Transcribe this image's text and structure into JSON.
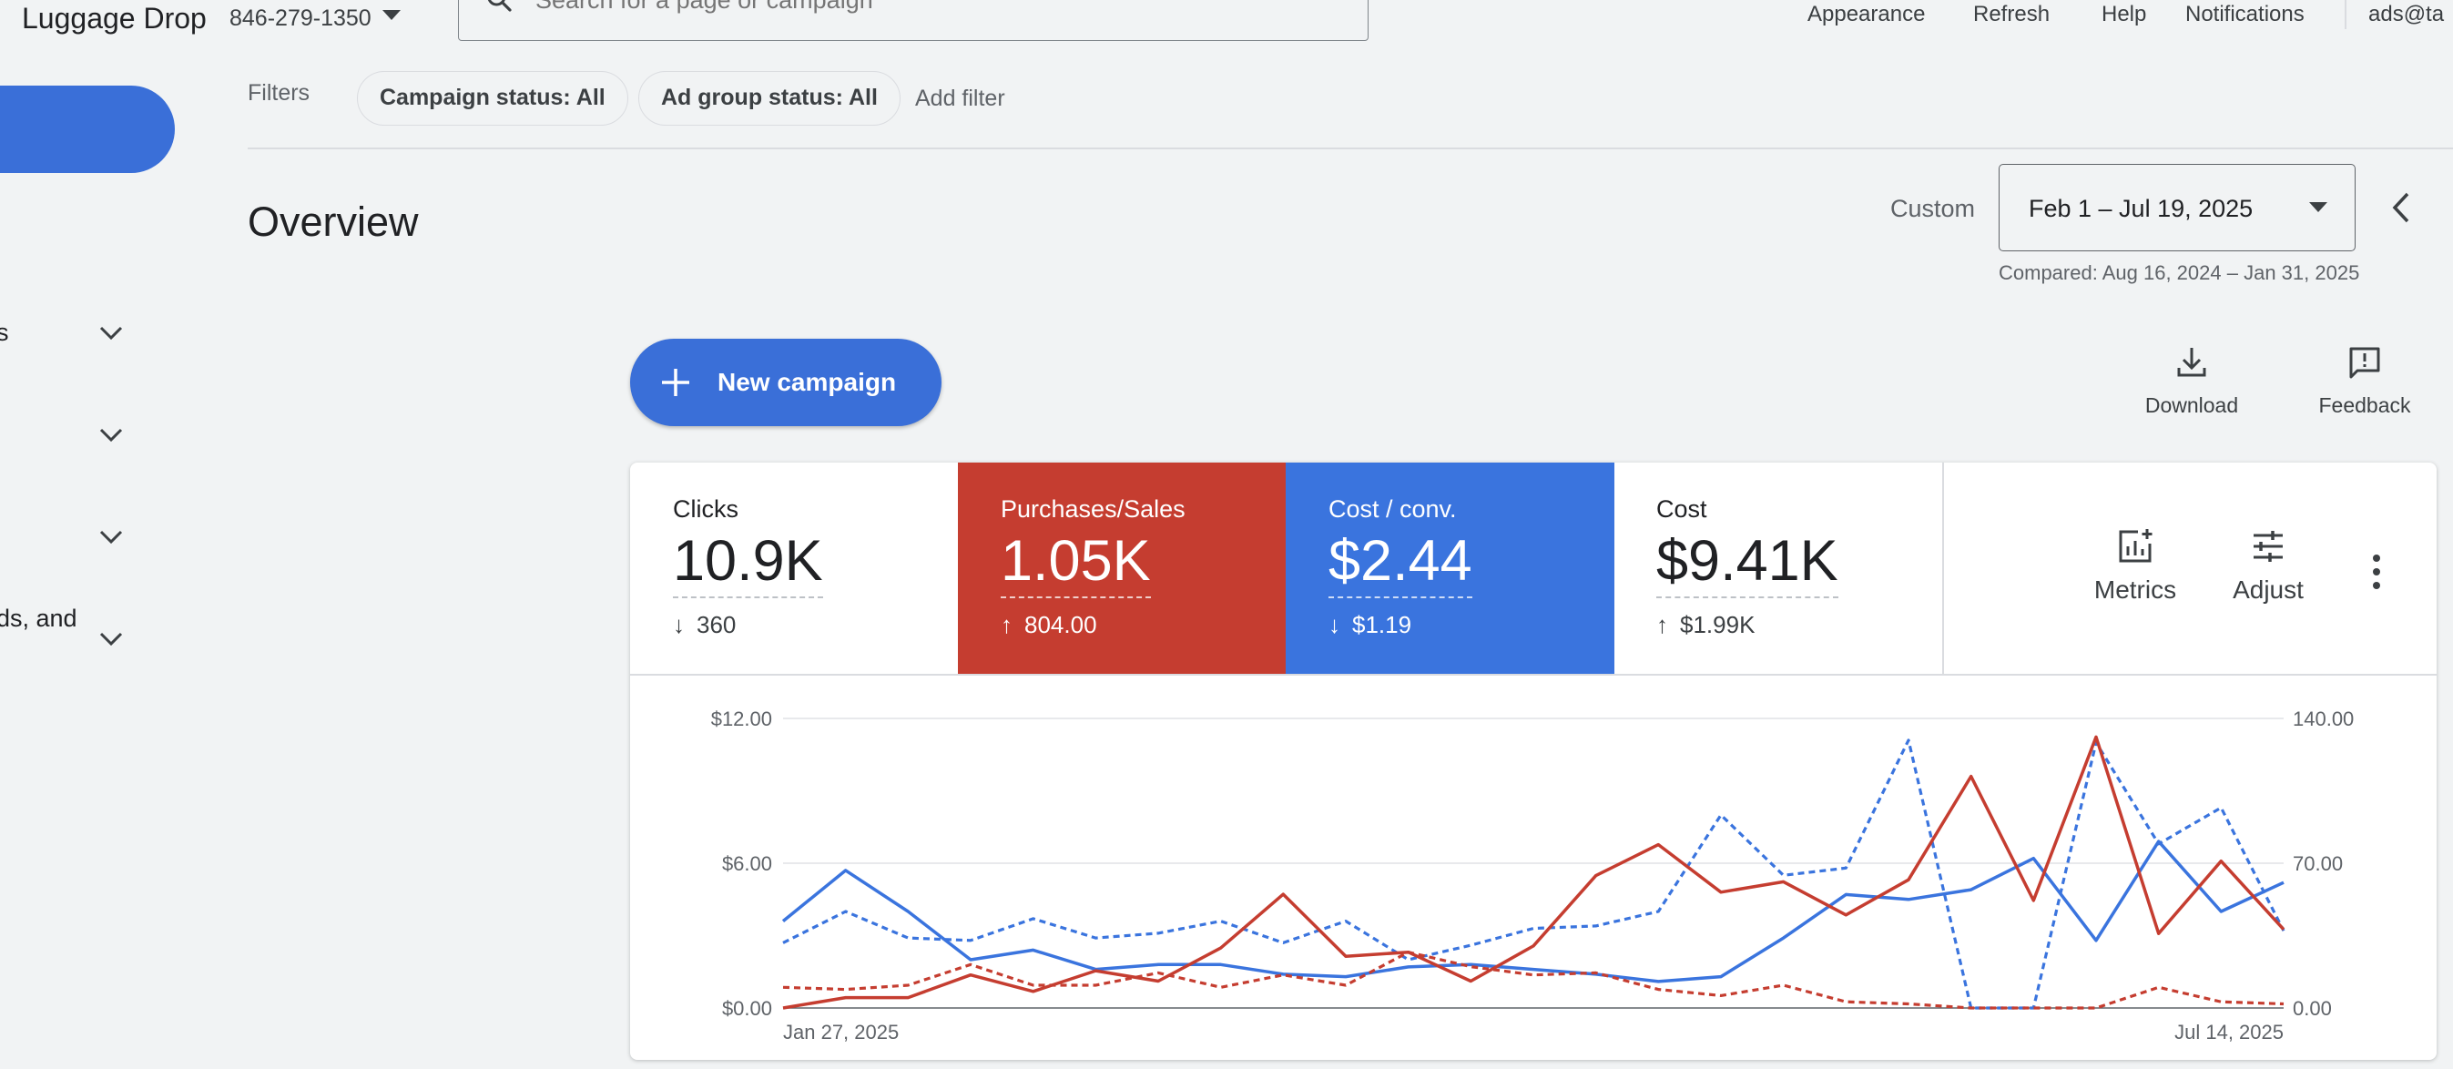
{
  "header": {
    "brand": "Luggage Drop",
    "account_id": "846-279-1350",
    "search_placeholder": "Search for a page or campaign",
    "actions": [
      "Appearance",
      "Refresh",
      "Help",
      "Notifications"
    ],
    "account_email": "ads@ta"
  },
  "sidebar": {
    "items": [
      {
        "label": "s"
      },
      {
        "label": ""
      },
      {
        "label": ""
      },
      {
        "label": "ds, and"
      }
    ]
  },
  "filters": {
    "label": "Filters",
    "chips": [
      "Campaign status: All",
      "Ad group status: All"
    ],
    "add_label": "Add filter"
  },
  "overview": {
    "title": "Overview",
    "range_mode": "Custom",
    "date_range": "Feb 1 – Jul 19, 2025",
    "compared": "Compared: Aug 16, 2024 – Jan 31, 2025"
  },
  "new_campaign_label": "New campaign",
  "tools": {
    "download": "Download",
    "feedback": "Feedback",
    "metrics": "Metrics",
    "adjust": "Adjust"
  },
  "colors": {
    "blue": "#3a74de",
    "red": "#c53d30",
    "page_bg": "#f1f3f4"
  },
  "metrics": [
    {
      "label": "Clicks",
      "value": "10.9K",
      "delta": "360",
      "direction": "down",
      "style": "white"
    },
    {
      "label": "Purchases/Sales",
      "value": "1.05K",
      "delta": "804.00",
      "direction": "up",
      "style": "red"
    },
    {
      "label": "Cost / conv.",
      "value": "$2.44",
      "delta": "$1.19",
      "direction": "down",
      "style": "blue"
    },
    {
      "label": "Cost",
      "value": "$9.41K",
      "delta": "$1.99K",
      "direction": "up",
      "style": "white"
    }
  ],
  "chart_data": {
    "type": "line",
    "x_start_label": "Jan 27, 2025",
    "x_end_label": "Jul 14, 2025",
    "y_left": {
      "ticks": [
        "$0.00",
        "$6.00",
        "$12.00"
      ],
      "range": [
        0,
        12
      ]
    },
    "y_right": {
      "ticks": [
        "0.00",
        "70.00",
        "140.00"
      ],
      "range": [
        0,
        140
      ]
    },
    "grid": true,
    "series": [
      {
        "metric": "Cost / conv.",
        "color": "blue",
        "dashed": false,
        "axis": "left",
        "values": [
          3.6,
          5.7,
          4.0,
          2.0,
          2.4,
          1.6,
          1.8,
          1.8,
          1.4,
          1.3,
          1.7,
          1.8,
          1.6,
          1.4,
          1.1,
          1.3,
          2.9,
          4.7,
          4.5,
          4.9,
          6.2,
          2.8,
          6.9,
          4.0,
          5.2
        ]
      },
      {
        "metric": "Cost / conv. (comparison)",
        "color": "blue",
        "dashed": true,
        "axis": "left",
        "values": [
          2.7,
          4.0,
          2.9,
          2.8,
          3.7,
          2.9,
          3.1,
          3.6,
          2.7,
          3.6,
          2.0,
          2.6,
          3.3,
          3.4,
          4.0,
          8.0,
          5.5,
          5.8,
          11.1,
          0.0,
          0.0,
          11.0,
          6.8,
          8.3,
          3.2
        ]
      },
      {
        "metric": "Purchases/Sales",
        "color": "red",
        "dashed": false,
        "axis": "right",
        "values": [
          0,
          5,
          5,
          16,
          8,
          18,
          13,
          29,
          55,
          25,
          27,
          13,
          30,
          64,
          79,
          56,
          61,
          45,
          62,
          112,
          52,
          131,
          36,
          71,
          38
        ]
      },
      {
        "metric": "Purchases/Sales (comparison)",
        "color": "red",
        "dashed": true,
        "axis": "right",
        "values": [
          10,
          9,
          11,
          21,
          11,
          11,
          17,
          10,
          16,
          11,
          27,
          20,
          16,
          17,
          9,
          6,
          11,
          3,
          2,
          0,
          0,
          0,
          10,
          3,
          2
        ]
      }
    ]
  }
}
